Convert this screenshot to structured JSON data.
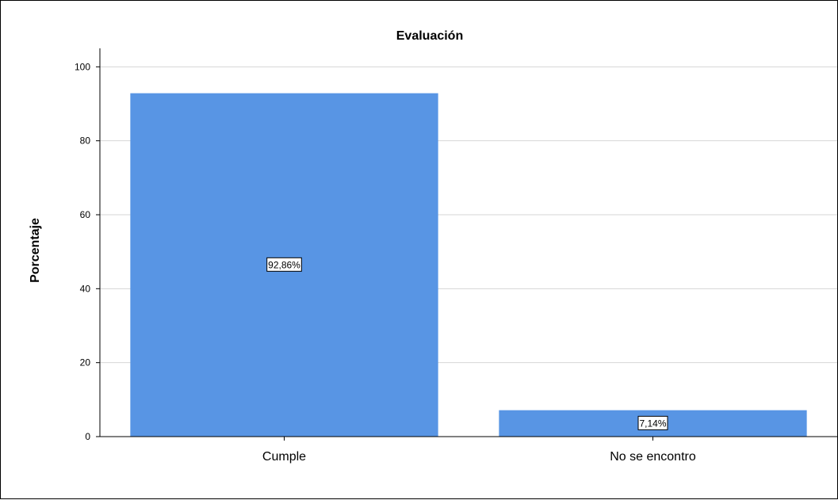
{
  "chart_data": {
    "type": "bar",
    "title": "Evaluación",
    "xlabel": "",
    "ylabel": "Porcentaje",
    "categories": [
      "Cumple",
      "No se encontro"
    ],
    "values": [
      92.86,
      7.14
    ],
    "data_labels": [
      "92,86%",
      "7,14%"
    ],
    "yticks": [
      "0",
      "20",
      "40",
      "60",
      "80",
      "100"
    ],
    "ylim": [
      0,
      105
    ],
    "grid": true,
    "bar_color": "#5895E4",
    "grid_color": "#D6D6D6"
  }
}
